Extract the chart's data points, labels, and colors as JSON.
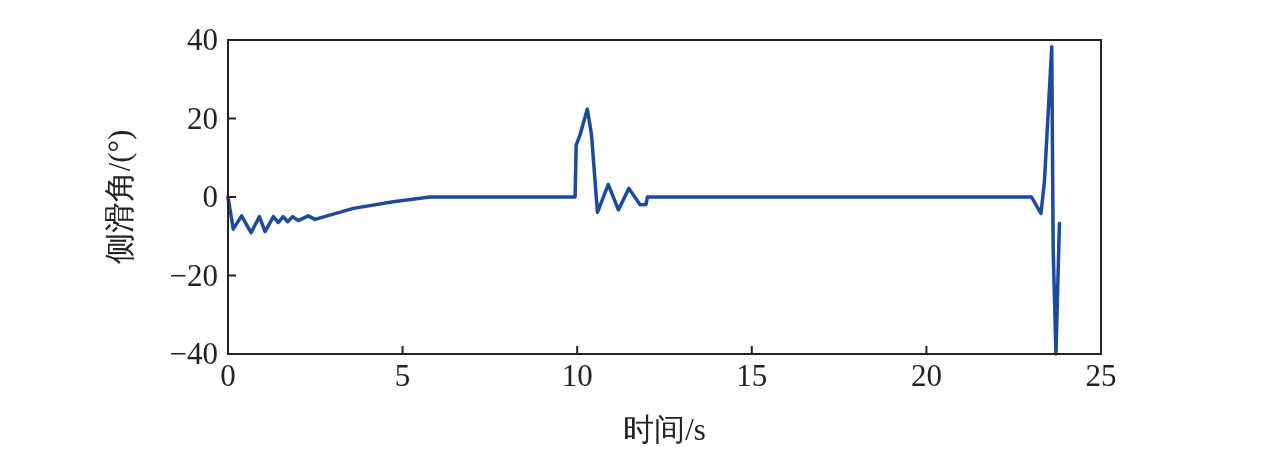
{
  "chart_data": {
    "type": "line",
    "xlabel": "时间/s",
    "ylabel": "侧滑角/(°)",
    "xlim": [
      0,
      25
    ],
    "ylim": [
      -40,
      40
    ],
    "xticks": [
      0,
      5,
      10,
      15,
      20,
      25
    ],
    "yticks": [
      {
        "value": -40,
        "label": "−40"
      },
      {
        "value": -20,
        "label": "−20"
      },
      0,
      20,
      40
    ],
    "grid": false,
    "series": [
      {
        "color": "#1d4a9c",
        "x": [
          0,
          0.15,
          0.39,
          0.66,
          0.9,
          1.06,
          1.3,
          1.44,
          1.58,
          1.71,
          1.85,
          2.01,
          2.3,
          2.49,
          3.59,
          4.73,
          5.78,
          9.94,
          9.97,
          10.08,
          10.29,
          10.41,
          10.58,
          10.89,
          11.18,
          11.48,
          11.8,
          11.97,
          12.01,
          23.01,
          23.28,
          23.38,
          23.59,
          23.63,
          23.71,
          23.81
        ],
        "values": [
          0,
          -8.2,
          -4.8,
          -9.1,
          -5.0,
          -8.8,
          -5.0,
          -6.5,
          -5.0,
          -6.3,
          -5.0,
          -6.0,
          -4.8,
          -5.7,
          -2.9,
          -1.2,
          0,
          0,
          13.2,
          15.8,
          22.4,
          15.8,
          -3.9,
          3.2,
          -3.3,
          2.2,
          -2.0,
          -1.9,
          0,
          0,
          -4.2,
          3.9,
          38.3,
          -13,
          -40,
          -6.7
        ]
      }
    ]
  }
}
